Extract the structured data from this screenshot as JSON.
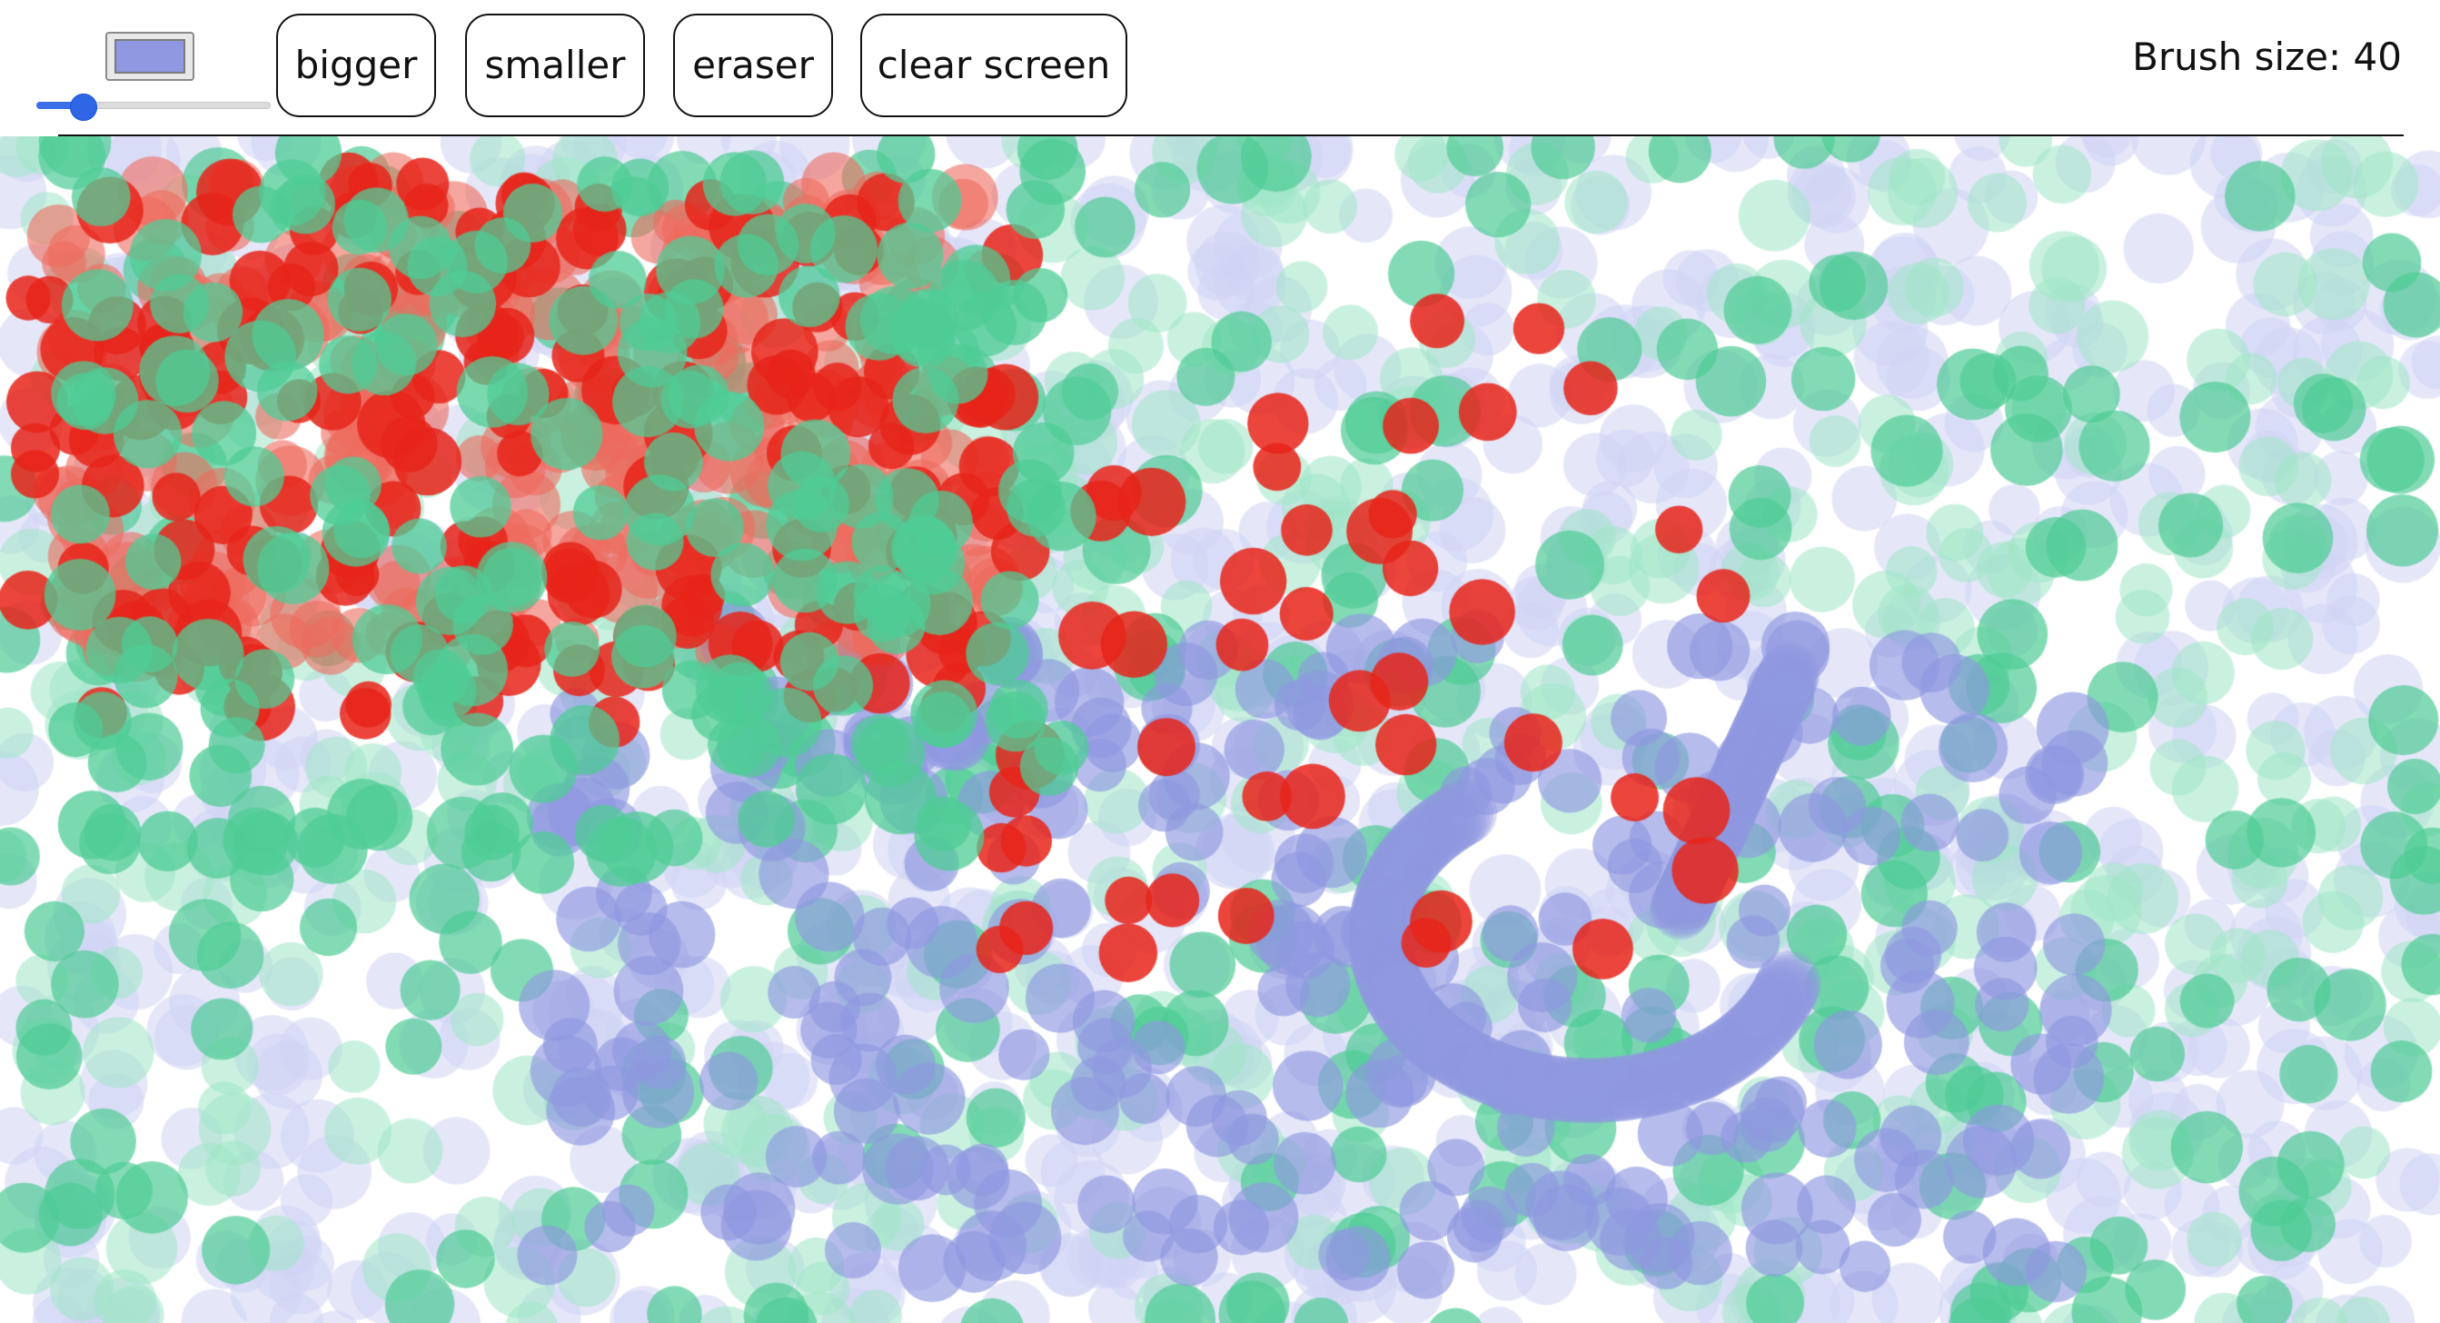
{
  "toolbar": {
    "color_value": "#8f98e0",
    "slider_value": 40,
    "slider_min": 0,
    "slider_max": 200,
    "buttons": {
      "bigger": "bigger",
      "smaller": "smaller",
      "eraser": "eraser",
      "clear": "clear screen"
    },
    "brush_size_text": "Brush size: 40"
  },
  "canvas": {
    "palette": {
      "red": "#e8241a",
      "salmon": "#ee6a5e",
      "green": "#4fcc96",
      "light_green": "#9ee6c6",
      "blue": "#8f98e0",
      "light_blue": "#cfd3f4"
    }
  }
}
